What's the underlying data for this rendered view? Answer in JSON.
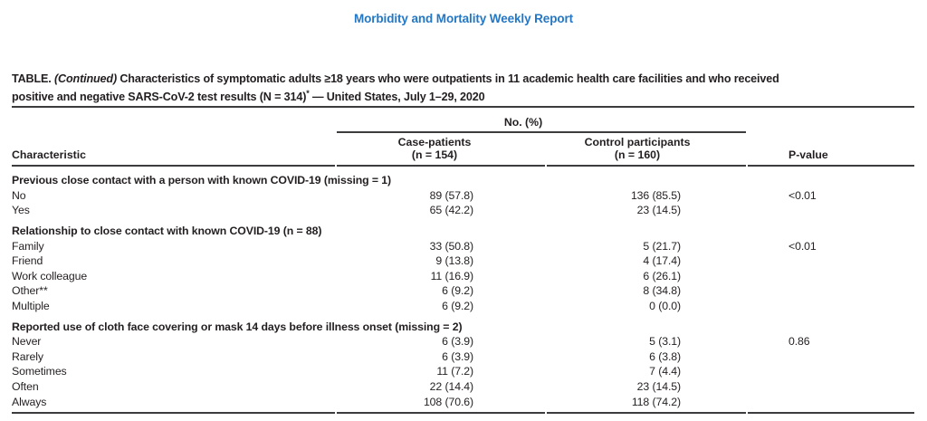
{
  "page": {
    "masthead": "Morbidity and Mortality Weekly Report",
    "colors": {
      "masthead_blue": "#2377c5",
      "text": "#231f20",
      "rule": "#3c3c3e",
      "background": "#ffffff"
    }
  },
  "table": {
    "title": {
      "label": "TABLE.",
      "continued": "(Continued)",
      "line1_rest": "Characteristics of symptomatic adults ≥18 years who were outpatients in 11 academic health care facilities and who received",
      "line2_main": "positive and negative SARS-CoV-2 test results (N = 314)",
      "footnote_marker": "*",
      "line2_tail": " — United States, July 1–29, 2020"
    },
    "spanner": "No. (%)",
    "columns": {
      "characteristic": "Characteristic",
      "case_line1": "Case-patients",
      "case_line2": "(n = 154)",
      "control_line1": "Control participants",
      "control_line2": "(n = 160)",
      "pvalue": "P-value"
    },
    "sections": [
      {
        "header": "Previous close contact with a person with known COVID-19 (missing = 1)",
        "rows": [
          {
            "label": "No",
            "case": "89 (57.8)",
            "control": "136 (85.5)",
            "p": "<0.01"
          },
          {
            "label": "Yes",
            "case": "65 (42.2)",
            "control": "23 (14.5)",
            "p": ""
          }
        ]
      },
      {
        "header": "Relationship to close contact with known COVID-19 (n = 88)",
        "rows": [
          {
            "label": "Family",
            "case": "33 (50.8)",
            "control": "5 (21.7)",
            "p": "<0.01"
          },
          {
            "label": "Friend",
            "case": "9 (13.8)",
            "control": "4 (17.4)",
            "p": ""
          },
          {
            "label": "Work colleague",
            "case": "11 (16.9)",
            "control": "6 (26.1)",
            "p": ""
          },
          {
            "label": "Other**",
            "case": "6 (9.2)",
            "control": "8 (34.8)",
            "p": ""
          },
          {
            "label": "Multiple",
            "case": "6 (9.2)",
            "control": "0 (0.0)",
            "p": ""
          }
        ]
      },
      {
        "header": "Reported use of cloth face covering or mask 14 days before illness onset (missing = 2)",
        "rows": [
          {
            "label": "Never",
            "case": "6 (3.9)",
            "control": "5 (3.1)",
            "p": "0.86"
          },
          {
            "label": "Rarely",
            "case": "6 (3.9)",
            "control": "6 (3.8)",
            "p": ""
          },
          {
            "label": "Sometimes",
            "case": "11 (7.2)",
            "control": "7 (4.4)",
            "p": ""
          },
          {
            "label": "Often",
            "case": "22 (14.4)",
            "control": "23 (14.5)",
            "p": ""
          },
          {
            "label": "Always",
            "case": "108 (70.6)",
            "control": "118 (74.2)",
            "p": ""
          }
        ]
      }
    ]
  }
}
